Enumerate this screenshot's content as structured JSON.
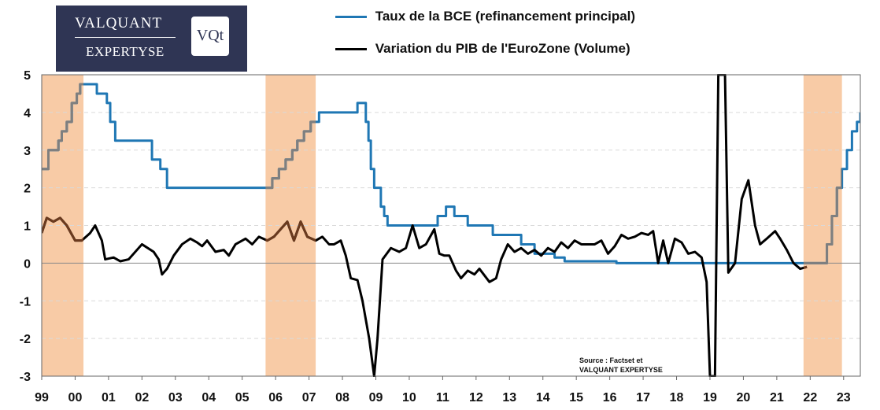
{
  "logo": {
    "line1": "VALQUANT",
    "line2": "EXPERTYSE",
    "badge": "VQt"
  },
  "source": {
    "line1": "Source : Factset et",
    "line2": "VALQUANT  EXPERTYSE"
  },
  "colors": {
    "bce": "#1f77b4",
    "bce_shaded": "#7f7f7f",
    "pib": "#000000",
    "pib_shaded": "#6b3a1e",
    "band": "#f8cba6",
    "zero_line": "#888888",
    "grid": "#d9d9d9"
  },
  "chart_data": {
    "type": "line",
    "title": "",
    "xlabel": "",
    "ylabel": "",
    "ylim": [
      -3,
      5
    ],
    "xlim": [
      1999,
      2023.5
    ],
    "yticks": [
      "5",
      "4",
      "3",
      "2",
      "1",
      "0",
      "-1",
      "-2",
      "-3"
    ],
    "xticks": [
      "99",
      "00",
      "01",
      "02",
      "03",
      "04",
      "05",
      "06",
      "07",
      "08",
      "09",
      "10",
      "11",
      "12",
      "13",
      "14",
      "15",
      "16",
      "17",
      "18",
      "19",
      "20",
      "21",
      "22",
      "23"
    ],
    "grid": "horizontal dashed",
    "legend_position": "top-center",
    "shaded_periods": [
      [
        1999.0,
        2000.25
      ],
      [
        2005.7,
        2007.2
      ],
      [
        2021.8,
        2022.95
      ]
    ],
    "series": [
      {
        "name": "Taux de la BCE (refinancement principal)",
        "kind": "step",
        "points": [
          [
            1999.0,
            2.5
          ],
          [
            1999.2,
            3.0
          ],
          [
            1999.5,
            3.25
          ],
          [
            1999.6,
            3.5
          ],
          [
            1999.75,
            3.75
          ],
          [
            1999.9,
            4.25
          ],
          [
            2000.05,
            4.5
          ],
          [
            2000.15,
            4.75
          ],
          [
            2000.65,
            4.5
          ],
          [
            2000.95,
            4.25
          ],
          [
            2001.05,
            3.75
          ],
          [
            2001.2,
            3.25
          ],
          [
            2002.3,
            2.75
          ],
          [
            2002.55,
            2.5
          ],
          [
            2002.75,
            2.0
          ],
          [
            2005.9,
            2.25
          ],
          [
            2006.1,
            2.5
          ],
          [
            2006.3,
            2.75
          ],
          [
            2006.5,
            3.0
          ],
          [
            2006.65,
            3.25
          ],
          [
            2006.85,
            3.5
          ],
          [
            2007.05,
            3.75
          ],
          [
            2007.3,
            4.0
          ],
          [
            2008.45,
            4.25
          ],
          [
            2008.7,
            3.75
          ],
          [
            2008.78,
            3.25
          ],
          [
            2008.85,
            2.5
          ],
          [
            2008.95,
            2.0
          ],
          [
            2009.15,
            1.5
          ],
          [
            2009.25,
            1.25
          ],
          [
            2009.35,
            1.0
          ],
          [
            2010.85,
            1.25
          ],
          [
            2011.1,
            1.5
          ],
          [
            2011.35,
            1.25
          ],
          [
            2011.75,
            1.0
          ],
          [
            2012.5,
            0.75
          ],
          [
            2013.35,
            0.5
          ],
          [
            2013.75,
            0.25
          ],
          [
            2014.35,
            0.15
          ],
          [
            2014.65,
            0.05
          ],
          [
            2016.2,
            0.0
          ],
          [
            2022.2,
            0.0
          ],
          [
            2022.5,
            0.5
          ],
          [
            2022.65,
            1.25
          ],
          [
            2022.8,
            2.0
          ],
          [
            2022.95,
            2.5
          ],
          [
            2023.1,
            3.0
          ],
          [
            2023.25,
            3.5
          ],
          [
            2023.4,
            3.75
          ],
          [
            2023.5,
            4.0
          ]
        ]
      },
      {
        "name": "Variation du PIB de l'EuroZone (Volume)",
        "kind": "line",
        "points": [
          [
            1999.0,
            0.8
          ],
          [
            1999.15,
            1.2
          ],
          [
            1999.35,
            1.1
          ],
          [
            1999.55,
            1.2
          ],
          [
            1999.75,
            1.0
          ],
          [
            2000.0,
            0.6
          ],
          [
            2000.2,
            0.6
          ],
          [
            2000.45,
            0.8
          ],
          [
            2000.6,
            1.0
          ],
          [
            2000.8,
            0.6
          ],
          [
            2000.9,
            0.1
          ],
          [
            2001.15,
            0.15
          ],
          [
            2001.35,
            0.05
          ],
          [
            2001.6,
            0.1
          ],
          [
            2002.0,
            0.5
          ],
          [
            2002.35,
            0.3
          ],
          [
            2002.5,
            0.1
          ],
          [
            2002.6,
            -0.3
          ],
          [
            2002.75,
            -0.15
          ],
          [
            2002.95,
            0.2
          ],
          [
            2003.2,
            0.5
          ],
          [
            2003.45,
            0.65
          ],
          [
            2003.65,
            0.55
          ],
          [
            2003.8,
            0.45
          ],
          [
            2003.95,
            0.6
          ],
          [
            2004.2,
            0.3
          ],
          [
            2004.45,
            0.35
          ],
          [
            2004.6,
            0.2
          ],
          [
            2004.8,
            0.5
          ],
          [
            2005.1,
            0.65
          ],
          [
            2005.3,
            0.5
          ],
          [
            2005.5,
            0.7
          ],
          [
            2005.75,
            0.6
          ],
          [
            2005.95,
            0.7
          ],
          [
            2006.15,
            0.9
          ],
          [
            2006.35,
            1.1
          ],
          [
            2006.55,
            0.6
          ],
          [
            2006.75,
            1.1
          ],
          [
            2006.95,
            0.7
          ],
          [
            2007.2,
            0.6
          ],
          [
            2007.4,
            0.7
          ],
          [
            2007.6,
            0.5
          ],
          [
            2007.75,
            0.5
          ],
          [
            2007.95,
            0.6
          ],
          [
            2008.1,
            0.2
          ],
          [
            2008.25,
            -0.4
          ],
          [
            2008.45,
            -0.45
          ],
          [
            2008.6,
            -1.0
          ],
          [
            2008.8,
            -2.0
          ],
          [
            2008.95,
            -3.0
          ],
          [
            2009.05,
            -2.0
          ],
          [
            2009.2,
            0.1
          ],
          [
            2009.45,
            0.4
          ],
          [
            2009.7,
            0.3
          ],
          [
            2009.9,
            0.4
          ],
          [
            2010.1,
            1.0
          ],
          [
            2010.3,
            0.4
          ],
          [
            2010.5,
            0.5
          ],
          [
            2010.75,
            0.9
          ],
          [
            2010.9,
            0.25
          ],
          [
            2011.05,
            0.2
          ],
          [
            2011.2,
            0.2
          ],
          [
            2011.4,
            -0.2
          ],
          [
            2011.55,
            -0.4
          ],
          [
            2011.75,
            -0.2
          ],
          [
            2011.95,
            -0.3
          ],
          [
            2012.1,
            -0.15
          ],
          [
            2012.4,
            -0.5
          ],
          [
            2012.6,
            -0.4
          ],
          [
            2012.75,
            0.1
          ],
          [
            2012.95,
            0.5
          ],
          [
            2013.15,
            0.3
          ],
          [
            2013.35,
            0.4
          ],
          [
            2013.55,
            0.25
          ],
          [
            2013.75,
            0.35
          ],
          [
            2013.95,
            0.2
          ],
          [
            2014.15,
            0.4
          ],
          [
            2014.35,
            0.3
          ],
          [
            2014.55,
            0.55
          ],
          [
            2014.75,
            0.4
          ],
          [
            2014.95,
            0.6
          ],
          [
            2015.15,
            0.5
          ],
          [
            2015.35,
            0.5
          ],
          [
            2015.55,
            0.5
          ],
          [
            2015.75,
            0.6
          ],
          [
            2015.95,
            0.25
          ],
          [
            2016.15,
            0.45
          ],
          [
            2016.35,
            0.75
          ],
          [
            2016.55,
            0.65
          ],
          [
            2016.75,
            0.7
          ],
          [
            2016.95,
            0.8
          ],
          [
            2017.15,
            0.75
          ],
          [
            2017.3,
            0.85
          ],
          [
            2017.45,
            0.0
          ],
          [
            2017.6,
            0.6
          ],
          [
            2017.75,
            0.0
          ],
          [
            2017.95,
            0.65
          ],
          [
            2018.15,
            0.55
          ],
          [
            2018.35,
            0.25
          ],
          [
            2018.55,
            0.3
          ],
          [
            2018.75,
            0.15
          ],
          [
            2018.9,
            -0.5
          ],
          [
            2019.0,
            -3.0
          ],
          [
            2019.15,
            -3.0
          ],
          [
            2019.25,
            5.0
          ],
          [
            2019.45,
            5.0
          ],
          [
            2019.55,
            -0.25
          ],
          [
            2019.75,
            0.0
          ],
          [
            2019.95,
            1.7
          ],
          [
            2020.15,
            2.2
          ],
          [
            2020.35,
            1.0
          ],
          [
            2020.5,
            0.5
          ],
          [
            2020.7,
            0.65
          ],
          [
            2020.95,
            0.85
          ],
          [
            2021.1,
            0.65
          ],
          [
            2021.3,
            0.35
          ],
          [
            2021.5,
            0.0
          ],
          [
            2021.7,
            -0.15
          ],
          [
            2021.9,
            -0.1
          ]
        ]
      }
    ]
  }
}
